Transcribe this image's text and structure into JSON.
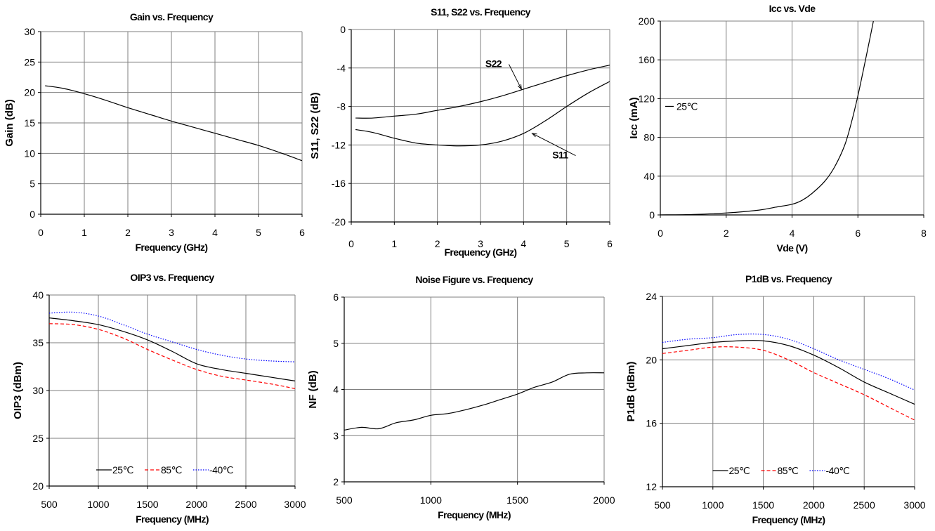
{
  "chart_data": [
    {
      "id": "gain",
      "type": "line",
      "title": "Gain vs. Frequency",
      "xlabel": "Frequency (GHz)",
      "ylabel": "Gain (dB)",
      "xlim": [
        0,
        6
      ],
      "ylim": [
        0,
        30
      ],
      "xticks": [
        0,
        1,
        2,
        3,
        4,
        5,
        6
      ],
      "yticks": [
        0,
        5,
        10,
        15,
        20,
        25,
        30
      ],
      "grid": true,
      "series": [
        {
          "color": "#000000",
          "dash": "",
          "x": [
            0.1,
            0.5,
            1,
            1.5,
            2,
            2.5,
            3,
            3.5,
            4,
            4.5,
            5,
            5.5,
            6
          ],
          "y": [
            21.1,
            20.7,
            19.8,
            18.7,
            17.5,
            16.4,
            15.3,
            14.3,
            13.3,
            12.3,
            11.3,
            10.1,
            8.8
          ]
        }
      ],
      "legend": null,
      "annotations": []
    },
    {
      "id": "s11s22",
      "type": "line",
      "title": "S11, S22 vs. Frequency",
      "xlabel": "Frequency (GHz)",
      "ylabel": "S11, S22 (dB)",
      "xlim": [
        0,
        6
      ],
      "ylim": [
        -20,
        0
      ],
      "xticks": [
        0,
        1,
        2,
        3,
        4,
        5,
        6
      ],
      "yticks": [
        -20,
        -16,
        -12,
        -8,
        -4,
        0
      ],
      "grid": true,
      "series": [
        {
          "color": "#000000",
          "dash": "",
          "x": [
            0.1,
            0.5,
            1,
            1.5,
            2,
            2.5,
            3,
            3.5,
            4,
            4.5,
            5,
            5.5,
            6
          ],
          "y": [
            -9.2,
            -9.2,
            -9.0,
            -8.8,
            -8.4,
            -8.0,
            -7.5,
            -6.9,
            -6.2,
            -5.5,
            -4.8,
            -4.2,
            -3.7
          ]
        },
        {
          "color": "#000000",
          "dash": "",
          "x": [
            0.1,
            0.5,
            1,
            1.5,
            2,
            2.5,
            3,
            3.5,
            4,
            4.5,
            5,
            5.5,
            6
          ],
          "y": [
            -10.4,
            -10.7,
            -11.3,
            -11.8,
            -12.0,
            -12.1,
            -12.0,
            -11.6,
            -10.8,
            -9.5,
            -8.0,
            -6.6,
            -5.4
          ]
        }
      ],
      "legend": null,
      "annotations": [
        {
          "text": "S22",
          "tx": 3.3,
          "ty": -3.9,
          "ax": 3.95,
          "ay": -6.2
        },
        {
          "text": "S11",
          "tx": 4.85,
          "ty": -13.4,
          "ax": 4.2,
          "ay": -10.8
        }
      ]
    },
    {
      "id": "icc",
      "type": "line",
      "title": "Icc vs. Vde",
      "xlabel": "Vde (V)",
      "ylabel": "Icc (mA)",
      "xlim": [
        0,
        8
      ],
      "ylim": [
        0,
        200
      ],
      "xticks": [
        0,
        2,
        4,
        6,
        8
      ],
      "yticks": [
        0,
        40,
        80,
        120,
        160,
        200
      ],
      "grid": true,
      "series": [
        {
          "name": "25℃",
          "color": "#000000",
          "dash": "",
          "x": [
            0,
            1,
            2,
            3,
            3.5,
            4,
            4.3,
            4.6,
            5.0,
            5.3,
            5.6,
            5.8,
            6.0,
            6.2,
            6.4,
            6.5
          ],
          "y": [
            0,
            0.5,
            2,
            5,
            8,
            11,
            15,
            22,
            35,
            50,
            72,
            95,
            123,
            155,
            188,
            205
          ]
        }
      ],
      "legend": {
        "position": "left-middle",
        "entries": [
          "25℃"
        ]
      },
      "annotations": []
    },
    {
      "id": "oip3",
      "type": "line",
      "title": "OIP3 vs. Frequency",
      "xlabel": "Frequency (MHz)",
      "ylabel": "OIP3 (dBm)",
      "xlim": [
        500,
        3000
      ],
      "ylim": [
        20,
        40
      ],
      "xticks": [
        500,
        1000,
        1500,
        2000,
        2500,
        3000
      ],
      "yticks": [
        20,
        25,
        30,
        35,
        40
      ],
      "grid": true,
      "series": [
        {
          "name": "25℃",
          "color": "#000000",
          "dash": "",
          "x": [
            500,
            750,
            1000,
            1250,
            1500,
            1750,
            2000,
            2250,
            2500,
            2750,
            3000
          ],
          "y": [
            37.6,
            37.3,
            36.9,
            36.2,
            35.3,
            34.1,
            32.8,
            32.2,
            31.8,
            31.4,
            31.0
          ]
        },
        {
          "name": "85℃",
          "color": "#ff0000",
          "dash": "5,3",
          "x": [
            500,
            750,
            1000,
            1250,
            1500,
            1750,
            2000,
            2250,
            2500,
            2750,
            3000
          ],
          "y": [
            37.0,
            36.9,
            36.4,
            35.5,
            34.3,
            33.2,
            32.2,
            31.5,
            31.1,
            30.7,
            30.2
          ]
        },
        {
          "name": "-40℃",
          "color": "#0000ff",
          "dash": "1.5,2",
          "x": [
            500,
            750,
            1000,
            1250,
            1500,
            1750,
            2000,
            2250,
            2500,
            2750,
            3000
          ],
          "y": [
            38.1,
            38.2,
            37.8,
            36.9,
            35.9,
            35.1,
            34.3,
            33.7,
            33.3,
            33.1,
            33.0
          ]
        }
      ],
      "legend": {
        "position": "bottom-center",
        "entries": [
          "25℃",
          "85℃",
          "-40℃"
        ]
      },
      "annotations": []
    },
    {
      "id": "nf",
      "type": "line",
      "title": "Noise Figure vs. Frequency",
      "xlabel": "Frequency (MHz)",
      "ylabel": "NF (dB)",
      "xlim": [
        500,
        2000
      ],
      "ylim": [
        2,
        6
      ],
      "xticks": [
        500,
        1000,
        1500,
        2000
      ],
      "yticks": [
        2,
        3,
        4,
        5,
        6
      ],
      "grid": true,
      "series": [
        {
          "color": "#000000",
          "dash": "",
          "x": [
            500,
            600,
            700,
            800,
            900,
            1000,
            1100,
            1200,
            1300,
            1400,
            1500,
            1600,
            1700,
            1800,
            1900,
            2000
          ],
          "y": [
            3.12,
            3.18,
            3.15,
            3.28,
            3.34,
            3.44,
            3.48,
            3.56,
            3.66,
            3.78,
            3.9,
            4.05,
            4.16,
            4.33,
            4.36,
            4.36
          ]
        }
      ],
      "legend": null,
      "annotations": []
    },
    {
      "id": "p1db",
      "type": "line",
      "title": "P1dB vs. Frequency",
      "xlabel": "Frequency (MHz)",
      "ylabel": "P1dB (dBm)",
      "xlim": [
        500,
        3000
      ],
      "ylim": [
        12,
        24
      ],
      "xticks": [
        500,
        1000,
        1500,
        2000,
        2500,
        3000
      ],
      "yticks": [
        12,
        16,
        20,
        24
      ],
      "grid": true,
      "series": [
        {
          "name": "25℃",
          "color": "#000000",
          "dash": "",
          "x": [
            500,
            750,
            1000,
            1250,
            1500,
            1750,
            2000,
            2250,
            2500,
            2750,
            3000
          ],
          "y": [
            20.7,
            20.9,
            21.1,
            21.2,
            21.2,
            20.9,
            20.3,
            19.5,
            18.6,
            17.9,
            17.2
          ]
        },
        {
          "name": "85℃",
          "color": "#ff0000",
          "dash": "5,3",
          "x": [
            500,
            750,
            1000,
            1250,
            1500,
            1750,
            2000,
            2250,
            2500,
            2750,
            3000
          ],
          "y": [
            20.4,
            20.6,
            20.8,
            20.8,
            20.6,
            20.0,
            19.2,
            18.5,
            17.8,
            17.0,
            16.2
          ]
        },
        {
          "name": "-40℃",
          "color": "#0000ff",
          "dash": "1.5,2",
          "x": [
            500,
            750,
            1000,
            1250,
            1500,
            1750,
            2000,
            2250,
            2500,
            2750,
            3000
          ],
          "y": [
            21.1,
            21.3,
            21.4,
            21.6,
            21.6,
            21.3,
            20.7,
            20.0,
            19.4,
            18.8,
            18.1
          ]
        }
      ],
      "legend": {
        "position": "bottom-center",
        "entries": [
          "25℃",
          "85℃",
          "-40℃"
        ]
      },
      "annotations": []
    }
  ]
}
